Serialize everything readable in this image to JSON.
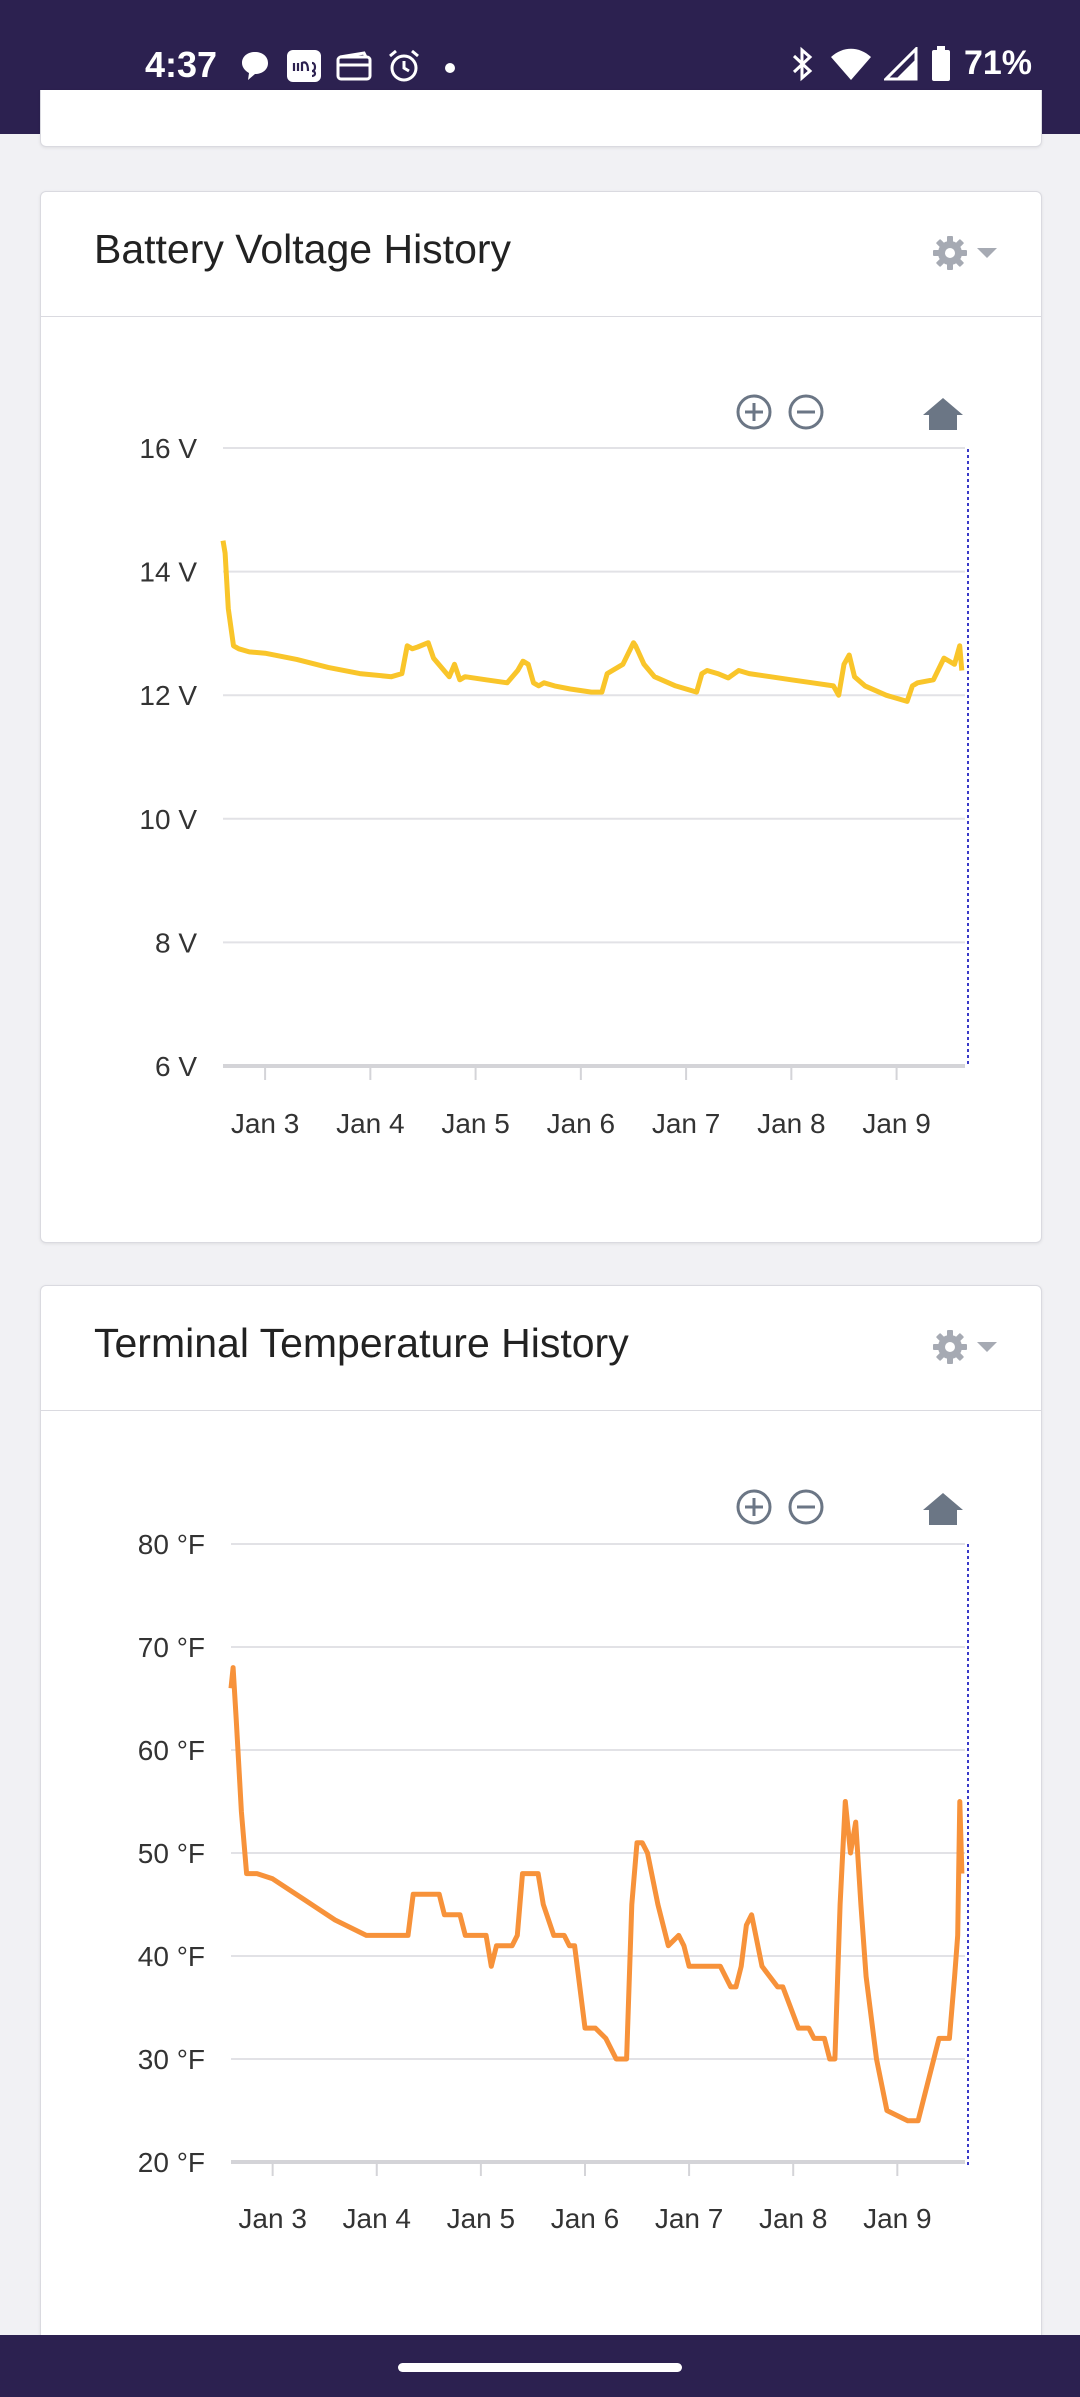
{
  "status_bar": {
    "time": "4:37",
    "battery": "71%",
    "left_icons": [
      "chat-icon",
      "ring-icon",
      "wallet-icon",
      "alarm-icon",
      "dot-icon"
    ],
    "right_icons": [
      "bluetooth-icon",
      "wifi-icon",
      "signal-icon",
      "battery-icon"
    ]
  },
  "zoom_controls": [
    "zoom-in-icon",
    "zoom-out-icon",
    "home-icon"
  ],
  "colors": {
    "voltage_line": "#f9c52a",
    "temperature_line": "#f7923a",
    "header_bg": "#2c2150",
    "cursor_line": "#3a3ac8"
  },
  "chart_data": [
    {
      "type": "line",
      "title": "Battery Voltage History",
      "ylim": [
        6,
        16
      ],
      "yticks": [
        6,
        8,
        10,
        12,
        14,
        16
      ],
      "ytick_labels": [
        "6 V",
        "8 V",
        "10 V",
        "12 V",
        "14 V",
        "16 V"
      ],
      "xticks": [
        3,
        4,
        5,
        6,
        7,
        8,
        9
      ],
      "xtick_labels": [
        "Jan 3",
        "Jan 4",
        "Jan 5",
        "Jan 6",
        "Jan 7",
        "Jan 8",
        "Jan 9"
      ],
      "xlim": [
        2.6,
        9.65
      ],
      "grid": true,
      "series": [
        {
          "x": [
            2.6,
            2.62,
            2.65,
            2.7,
            2.75,
            2.85,
            3.0,
            3.3,
            3.6,
            3.9,
            4.2,
            4.3,
            4.35,
            4.4,
            4.45,
            4.55,
            4.6,
            4.7,
            4.75,
            4.8,
            4.85,
            4.9,
            5.1,
            5.3,
            5.4,
            5.45,
            5.5,
            5.55,
            5.6,
            5.65,
            5.75,
            5.9,
            6.1,
            6.2,
            6.25,
            6.3,
            6.4,
            6.5,
            6.52,
            6.6,
            6.7,
            6.9,
            7.1,
            7.15,
            7.2,
            7.3,
            7.4,
            7.5,
            7.6,
            7.8,
            8.0,
            8.2,
            8.4,
            8.45,
            8.5,
            8.55,
            8.6,
            8.7,
            8.9,
            9.1,
            9.15,
            9.2,
            9.35,
            9.45,
            9.55,
            9.6,
            9.62
          ],
          "y": [
            14.5,
            14.3,
            13.4,
            12.8,
            12.75,
            12.7,
            12.68,
            12.58,
            12.45,
            12.35,
            12.3,
            12.35,
            12.8,
            12.75,
            12.78,
            12.85,
            12.6,
            12.4,
            12.3,
            12.5,
            12.25,
            12.3,
            12.25,
            12.2,
            12.4,
            12.55,
            12.5,
            12.2,
            12.15,
            12.2,
            12.15,
            12.1,
            12.05,
            12.05,
            12.35,
            12.4,
            12.5,
            12.85,
            12.8,
            12.5,
            12.3,
            12.15,
            12.05,
            12.35,
            12.4,
            12.35,
            12.28,
            12.4,
            12.35,
            12.3,
            12.25,
            12.2,
            12.15,
            12.0,
            12.5,
            12.65,
            12.3,
            12.15,
            12.0,
            11.9,
            12.15,
            12.2,
            12.25,
            12.6,
            12.5,
            12.8,
            12.4
          ]
        }
      ]
    },
    {
      "type": "line",
      "title": "Terminal Temperature History",
      "ylim": [
        20,
        80
      ],
      "yticks": [
        20,
        30,
        40,
        50,
        60,
        70,
        80
      ],
      "ytick_labels": [
        "20 °F",
        "30 °F",
        "40 °F",
        "50 °F",
        "60 °F",
        "70 °F",
        "80 °F"
      ],
      "xticks": [
        3,
        4,
        5,
        6,
        7,
        8,
        9
      ],
      "xtick_labels": [
        "Jan 3",
        "Jan 4",
        "Jan 5",
        "Jan 6",
        "Jan 7",
        "Jan 8",
        "Jan 9"
      ],
      "xlim": [
        2.6,
        9.65
      ],
      "grid": true,
      "series": [
        {
          "x": [
            2.6,
            2.62,
            2.65,
            2.7,
            2.75,
            2.85,
            3.0,
            3.3,
            3.6,
            3.9,
            4.3,
            4.35,
            4.4,
            4.6,
            4.65,
            4.8,
            4.85,
            5.05,
            5.1,
            5.15,
            5.3,
            5.35,
            5.4,
            5.55,
            5.6,
            5.7,
            5.8,
            5.85,
            5.9,
            6.0,
            6.1,
            6.2,
            6.3,
            6.4,
            6.45,
            6.5,
            6.55,
            6.6,
            6.7,
            6.8,
            6.9,
            6.95,
            7.0,
            7.2,
            7.3,
            7.4,
            7.45,
            7.5,
            7.55,
            7.6,
            7.7,
            7.85,
            7.9,
            8.05,
            8.15,
            8.2,
            8.3,
            8.35,
            8.4,
            8.45,
            8.5,
            8.55,
            8.6,
            8.65,
            8.7,
            8.8,
            8.9,
            9.1,
            9.15,
            9.2,
            9.35,
            9.4,
            9.45,
            9.5,
            9.55,
            9.58,
            9.6,
            9.62
          ],
          "y": [
            66,
            68,
            63,
            54,
            48,
            48,
            47.5,
            45.5,
            43.5,
            42,
            42,
            46,
            46,
            46,
            44,
            44,
            42,
            42,
            39,
            41,
            41,
            42,
            48,
            48,
            45,
            42,
            42,
            41,
            41,
            33,
            33,
            32,
            30,
            30,
            45,
            51,
            51,
            50,
            45,
            41,
            42,
            41,
            39,
            39,
            39,
            37,
            37,
            39,
            43,
            44,
            39,
            37,
            37,
            33,
            33,
            32,
            32,
            30,
            30,
            45,
            55,
            50,
            53,
            45,
            38,
            30,
            25,
            24,
            24,
            24,
            30,
            32,
            32,
            32,
            38,
            42,
            55,
            48
          ]
        }
      ]
    }
  ]
}
